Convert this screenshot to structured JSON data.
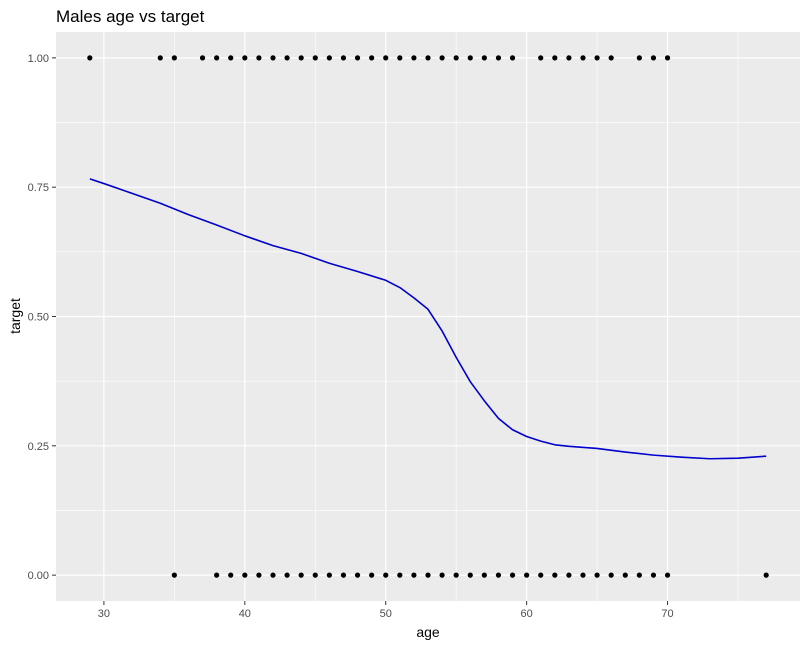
{
  "chart_data": {
    "type": "scatter",
    "title": "Males age vs target",
    "xlabel": "age",
    "ylabel": "target",
    "xlim": [
      26.6,
      79.4
    ],
    "ylim": [
      -0.05,
      1.05
    ],
    "x_ticks": [
      30,
      40,
      50,
      60,
      70
    ],
    "x_tick_labels": [
      "30",
      "40",
      "50",
      "60",
      "70"
    ],
    "y_ticks": [
      0,
      0.25,
      0.5,
      0.75,
      1.0
    ],
    "y_tick_labels": [
      "0.00",
      "0.25",
      "0.50",
      "0.75",
      "1.00"
    ],
    "grid": true,
    "legend": "none",
    "colors": {
      "panel_bg": "#ebebeb",
      "grid": "#ffffff",
      "points": "#000000",
      "smooth_line": "#0000cd"
    },
    "points": {
      "target_1_ages": [
        29,
        34,
        35,
        37,
        38,
        39,
        40,
        41,
        42,
        43,
        44,
        45,
        46,
        47,
        48,
        49,
        50,
        51,
        52,
        53,
        54,
        55,
        56,
        57,
        58,
        59,
        61,
        62,
        63,
        64,
        65,
        66,
        68,
        69,
        70
      ],
      "target_0_ages": [
        35,
        38,
        39,
        40,
        41,
        42,
        43,
        44,
        45,
        46,
        47,
        48,
        49,
        50,
        51,
        52,
        53,
        54,
        55,
        56,
        57,
        58,
        59,
        60,
        61,
        62,
        63,
        64,
        65,
        66,
        67,
        68,
        69,
        70,
        77
      ]
    },
    "smooth_line": {
      "x": [
        29,
        30,
        32,
        34,
        36,
        38,
        40,
        42,
        44,
        46,
        48,
        50,
        51,
        52,
        53,
        54,
        55,
        56,
        57,
        58,
        59,
        60,
        61,
        62,
        63,
        65,
        67,
        69,
        71,
        73,
        75,
        77
      ],
      "y": [
        0.766,
        0.757,
        0.738,
        0.719,
        0.697,
        0.677,
        0.656,
        0.637,
        0.622,
        0.603,
        0.587,
        0.57,
        0.556,
        0.536,
        0.514,
        0.472,
        0.421,
        0.374,
        0.337,
        0.303,
        0.281,
        0.268,
        0.259,
        0.252,
        0.249,
        0.245,
        0.238,
        0.232,
        0.228,
        0.225,
        0.226,
        0.23
      ]
    }
  }
}
